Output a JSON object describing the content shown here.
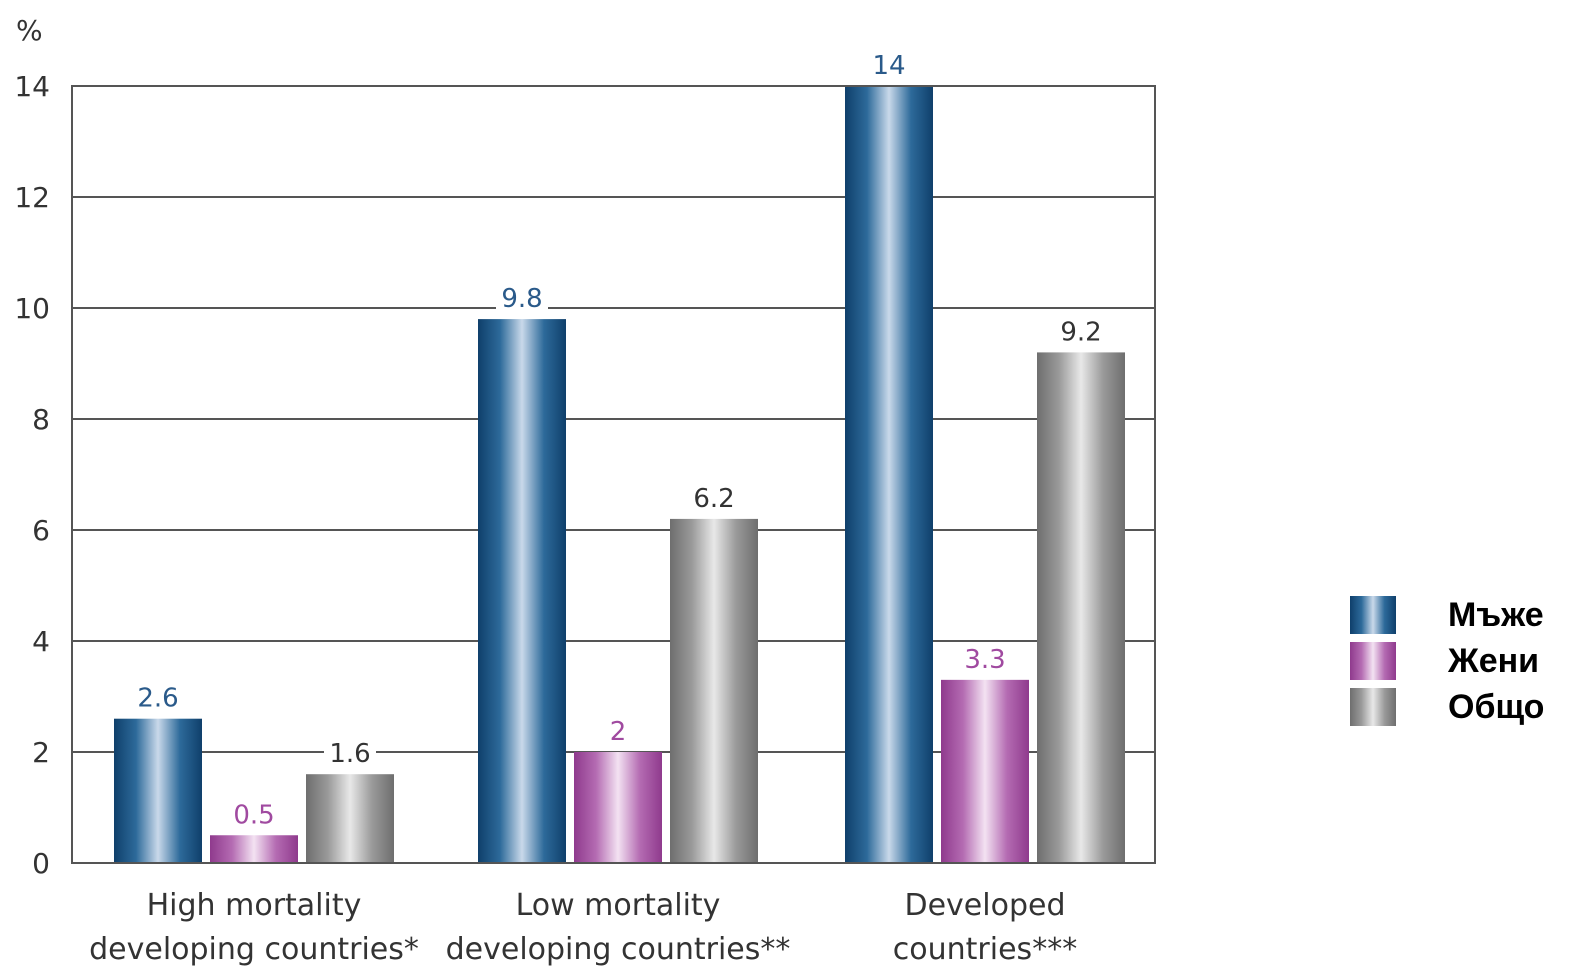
{
  "chart_data": {
    "type": "bar",
    "title": "",
    "xlabel": "",
    "ylabel": "%",
    "ylim": [
      0,
      14
    ],
    "yticks": [
      0,
      2,
      4,
      6,
      8,
      10,
      12,
      14
    ],
    "grid": true,
    "legend_position": "right",
    "categories": [
      [
        "High mortality",
        "developing countries*"
      ],
      [
        "Low mortality",
        "developing countries**"
      ],
      [
        "Developed",
        "countries***"
      ]
    ],
    "series": [
      {
        "name": "Мъже",
        "values": [
          2.6,
          9.8,
          14
        ],
        "labels": [
          "2.6",
          "9.8",
          "14"
        ],
        "color": "#1f5a8c",
        "label_color": "#2a5a8a"
      },
      {
        "name": "Жени",
        "values": [
          0.5,
          2,
          3.3
        ],
        "labels": [
          "0.5",
          "2",
          "3.3"
        ],
        "color": "#a54ea2",
        "label_color": "#a04aa0"
      },
      {
        "name": "Общо",
        "values": [
          1.6,
          6.2,
          9.2
        ],
        "labels": [
          "1.6",
          "6.2",
          "9.2"
        ],
        "color": "#8c8c8c",
        "label_color": "#333333"
      }
    ]
  }
}
